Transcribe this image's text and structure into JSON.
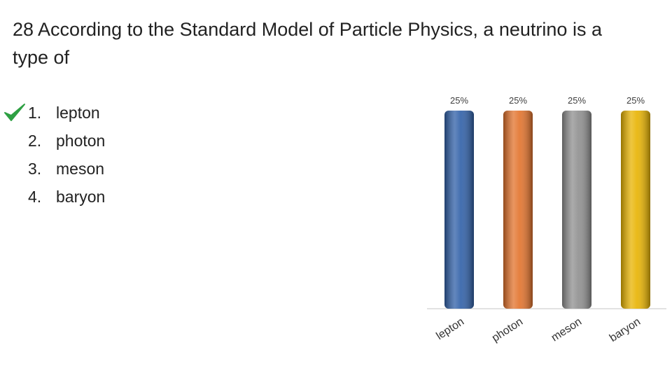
{
  "question": {
    "title": "28 According to the Standard Model of Particle Physics, a neutrino is a type of",
    "options": [
      {
        "number": "1.",
        "text": "lepton"
      },
      {
        "number": "2.",
        "text": "photon"
      },
      {
        "number": "3.",
        "text": "meson"
      },
      {
        "number": "4.",
        "text": "baryon"
      }
    ]
  },
  "chart_data": {
    "type": "bar",
    "categories": [
      "lepton",
      "photon",
      "meson",
      "baryon"
    ],
    "values": [
      25,
      25,
      25,
      25
    ],
    "value_labels": [
      "25%",
      "25%",
      "25%",
      "25%"
    ],
    "colors": [
      "#2f5fa7",
      "#e2722b",
      "#8f8f8f",
      "#e8b300"
    ]
  }
}
